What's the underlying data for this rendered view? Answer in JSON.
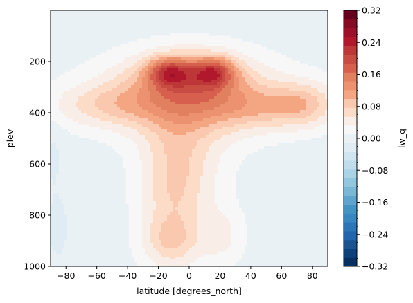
{
  "chart_data": {
    "type": "heatmap",
    "plot_kind": "filled-contour",
    "xlabel": "latitude [degrees_north]",
    "ylabel": "plev",
    "xlim": [
      -90,
      90
    ],
    "ylim": [
      1000,
      0
    ],
    "y_inverted": true,
    "xticks": [
      -80,
      -60,
      -40,
      -20,
      0,
      20,
      40,
      60,
      80
    ],
    "yticks": [
      200,
      400,
      600,
      800,
      1000
    ],
    "colorbar": {
      "label": "lw_q",
      "colormap": "RdBu_r",
      "range": [
        -0.32,
        0.32
      ],
      "level_step": 0.02,
      "ticks": [
        "-0.32",
        "-0.24",
        "-0.16",
        "-0.08",
        "0.00",
        "0.08",
        "0.16",
        "0.24",
        "0.32"
      ],
      "colors": [
        "#053061",
        "#0e4179",
        "#1a5390",
        "#2166ac",
        "#2c75b6",
        "#3987c0",
        "#4393c3",
        "#5ea4cd",
        "#7ab6d6",
        "#92c5de",
        "#aad3e6",
        "#c0dded",
        "#d1e5f0",
        "#e0ecf3",
        "#eaf1f5",
        "#f7f7f7",
        "#f9ede8",
        "#fcdbc7",
        "#f9c8ae",
        "#f4a582",
        "#ec9270",
        "#e0805f",
        "#d6604d",
        "#c94c42",
        "#bd3638",
        "#b2182b",
        "#9c1127",
        "#870a24",
        "#67001f"
      ]
    },
    "features": [
      {
        "name": "upper-tropospheric maximum (south)",
        "lat": -13,
        "plev": 240,
        "value": 0.32
      },
      {
        "name": "upper-tropospheric maximum (north)",
        "lat": 16,
        "plev": 240,
        "value": 0.32
      },
      {
        "name": "near-surface tropical maximum",
        "lat": -10,
        "plev": 900,
        "value": 0.12
      },
      {
        "name": "polar weak negative (south)",
        "lat": -85,
        "plev": 850,
        "value": -0.02
      },
      {
        "name": "polar weak negative (north)",
        "lat": 82,
        "plev": 880,
        "value": -0.01
      }
    ]
  }
}
